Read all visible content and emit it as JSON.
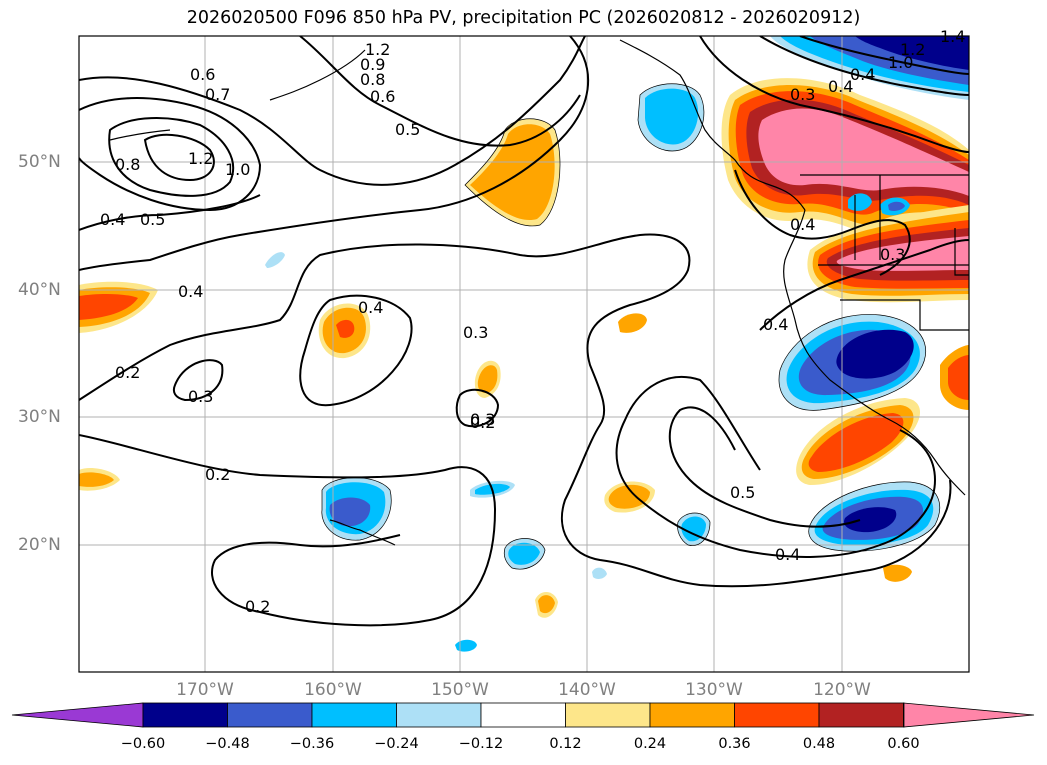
{
  "title": "2026020500 F096 850 hPa PV, precipitation PC (2026020812 - 2026020912)",
  "map": {
    "lat_labels": [
      "50°N",
      "40°N",
      "30°N",
      "20°N"
    ],
    "lon_labels": [
      "170°W",
      "160°W",
      "150°W",
      "140°W",
      "130°W",
      "120°W"
    ],
    "contour_labels": [
      "0.6",
      "0.7",
      "0.8",
      "1.2",
      "1.0",
      "0.4",
      "0.5",
      "1.2",
      "0.9",
      "0.8",
      "0.6",
      "0.5",
      "0.4",
      "0.3",
      "0.2",
      "0.3",
      "0.4",
      "0.3",
      "0.2",
      "0.2",
      "0.2",
      "0.5",
      "0.4",
      "0.4",
      "0.4",
      "0.3",
      "0.3",
      "0.4",
      "0.4",
      "1.0",
      "1.2",
      "1.4"
    ]
  },
  "colorbar": {
    "tick_labels": [
      "−0.60",
      "−0.48",
      "−0.36",
      "−0.24",
      "−0.12",
      "0.12",
      "0.24",
      "0.36",
      "0.48",
      "0.60"
    ],
    "colors": [
      "#9a39d4",
      "#00008b",
      "#3a5bcc",
      "#00bfff",
      "#ade0f6",
      "#ffffff",
      "#fde68a",
      "#ffa500",
      "#ff4500",
      "#b22222",
      "#ff85a8"
    ]
  }
}
